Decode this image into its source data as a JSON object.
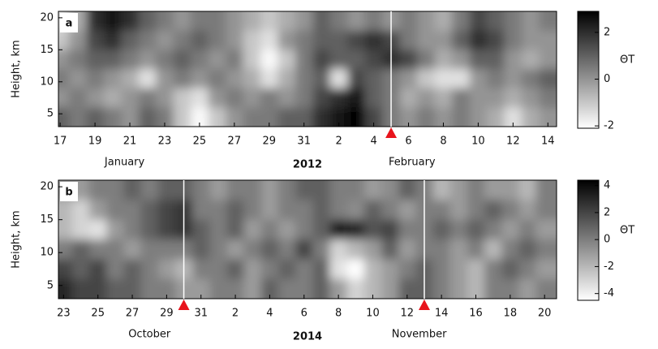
{
  "chart_data": [
    {
      "type": "heatmap",
      "panel_label": "a",
      "ylabel": "Height, km",
      "colorbar_label": "ΘT",
      "year": "2012",
      "colormap": [
        "#ffffff",
        "#000000"
      ],
      "x": [
        0,
        1,
        2,
        3,
        4,
        5,
        6,
        7,
        8,
        9,
        10,
        11,
        12,
        13,
        14,
        15,
        16,
        17,
        18,
        19,
        20,
        21,
        22,
        23,
        24,
        25,
        26,
        27,
        28
      ],
      "y": [
        19.5,
        16.5,
        13.5,
        10.5,
        7.5,
        4.5
      ],
      "z": [
        [
          -1.5,
          -0.5,
          2,
          2.5,
          2,
          1,
          0.5,
          0,
          0.5,
          0.5,
          0,
          -0.5,
          -1,
          -0.5,
          0,
          1,
          0.5,
          0,
          0.5,
          0,
          0.5,
          0,
          -0.5,
          0.5,
          1.5,
          1,
          0.5,
          0,
          0.5
        ],
        [
          -1,
          0,
          1.5,
          2,
          1,
          0.5,
          0,
          0.5,
          1,
          0.5,
          0,
          -1,
          -1.5,
          0,
          0.5,
          1,
          1,
          1.5,
          2,
          1.5,
          0.5,
          0,
          0,
          1,
          2,
          1.5,
          0.5,
          0,
          0
        ],
        [
          0,
          0.5,
          1,
          1,
          0.5,
          0,
          0.5,
          1,
          0.5,
          0,
          0.5,
          -1,
          -2,
          -1,
          0.5,
          1.5,
          1,
          1,
          1.5,
          2,
          1.5,
          0.5,
          -0.5,
          0,
          1,
          1,
          0,
          -0.5,
          0
        ],
        [
          0.5,
          0,
          0.5,
          0,
          -0.5,
          -1.5,
          0,
          0.5,
          0,
          0.5,
          0,
          -0.5,
          -1.5,
          -0.5,
          0.5,
          1,
          -1.5,
          1.5,
          1,
          0.5,
          0,
          -1,
          -1.5,
          -1.5,
          0,
          0.5,
          0,
          0.5,
          1
        ],
        [
          0,
          0.5,
          0,
          -0.5,
          0,
          0.5,
          0,
          -1,
          -1.5,
          0,
          0.5,
          0,
          0.5,
          0,
          0.5,
          1.5,
          2,
          2.5,
          1,
          0.5,
          -0.5,
          0,
          -0.5,
          0.5,
          0,
          0,
          -0.5,
          0,
          0.5
        ],
        [
          1,
          0.5,
          1,
          0.5,
          0,
          1,
          0.5,
          -1,
          -2,
          -1,
          0,
          0.5,
          0.5,
          1,
          1,
          2,
          2.5,
          2.9,
          1.5,
          0.5,
          0,
          0.5,
          0,
          0.5,
          0,
          -0.5,
          -1.5,
          -0.5,
          0
        ]
      ],
      "xlim": [
        -0.1,
        28.5
      ],
      "ylim": [
        3,
        21
      ],
      "yticks": [
        5,
        10,
        15,
        20
      ],
      "xticks": [
        {
          "value": 0,
          "label": "17"
        },
        {
          "value": 2,
          "label": "19"
        },
        {
          "value": 4,
          "label": "21"
        },
        {
          "value": 6,
          "label": "23"
        },
        {
          "value": 8,
          "label": "25"
        },
        {
          "value": 10,
          "label": "27"
        },
        {
          "value": 12,
          "label": "29"
        },
        {
          "value": 14,
          "label": "31"
        },
        {
          "value": 16,
          "label": "2"
        },
        {
          "value": 18,
          "label": "4"
        },
        {
          "value": 20,
          "label": "6"
        },
        {
          "value": 22,
          "label": "8"
        },
        {
          "value": 24,
          "label": "10"
        },
        {
          "value": 26,
          "label": "12"
        },
        {
          "value": 28,
          "label": "14"
        }
      ],
      "month_labels": [
        {
          "text": "January",
          "x": 3.7
        },
        {
          "text": "February",
          "x": 20.2
        }
      ],
      "events_x": [
        19
      ],
      "clim": [
        -2.1,
        2.9
      ],
      "cticks": [
        -2,
        0,
        2
      ]
    },
    {
      "type": "heatmap",
      "panel_label": "b",
      "ylabel": "Height, km",
      "colorbar_label": "ΘT",
      "year": "2014",
      "colormap": [
        "#ffffff",
        "#000000"
      ],
      "x": [
        0,
        1,
        2,
        3,
        4,
        5,
        6,
        7,
        8,
        9,
        10,
        11,
        12,
        13,
        14,
        15,
        16,
        17,
        18,
        19,
        20,
        21,
        22,
        23,
        24,
        25,
        26,
        27,
        28
      ],
      "y": [
        19.5,
        16.5,
        13.5,
        10.5,
        7.5,
        4.5
      ],
      "z": [
        [
          -1,
          -1,
          0,
          0,
          1,
          0,
          1,
          1,
          0,
          -1,
          0,
          0,
          -1,
          0,
          1,
          1,
          0,
          0,
          -1,
          -0.5,
          1,
          0,
          -2,
          -1,
          0,
          -1,
          -1,
          -2,
          0
        ],
        [
          -2,
          -3,
          -1,
          0,
          0,
          1,
          2,
          2.5,
          0,
          0,
          1,
          0,
          -1,
          0,
          0,
          1,
          0,
          -0.5,
          1,
          0,
          -1,
          0,
          0,
          -1,
          0,
          1,
          0,
          -1,
          0
        ],
        [
          -2,
          -3,
          -3.5,
          -1,
          0,
          1,
          2,
          2.5,
          1,
          0,
          1,
          -1,
          0,
          -1,
          0,
          1,
          3.5,
          3,
          1.5,
          2,
          0,
          0,
          1,
          0,
          1,
          0,
          -1,
          0,
          -1
        ],
        [
          0,
          1,
          0,
          0,
          -1,
          0,
          0,
          0,
          1,
          0,
          -1,
          0,
          1,
          0,
          2,
          0,
          -3,
          -2,
          -1,
          1,
          -1,
          0,
          0,
          -1,
          0,
          -2,
          0,
          1,
          0
        ],
        [
          2,
          1,
          2,
          0,
          1,
          0,
          -1,
          -2,
          0,
          0,
          1,
          -1,
          0,
          1,
          0,
          1,
          -3.5,
          -4.5,
          -2,
          -1,
          0,
          1,
          0,
          -1,
          -2,
          0,
          1,
          0,
          -1
        ],
        [
          3,
          2,
          2,
          1,
          1,
          0,
          0,
          -1,
          -1,
          0,
          0,
          -1,
          1,
          0,
          0,
          1,
          -1,
          -3,
          -2,
          -1,
          1,
          1,
          0,
          -1,
          -2,
          0,
          0,
          -1,
          0
        ]
      ],
      "xlim": [
        -0.3,
        28.7
      ],
      "ylim": [
        3,
        21
      ],
      "yticks": [
        5,
        10,
        15,
        20
      ],
      "xticks": [
        {
          "value": 0,
          "label": "23"
        },
        {
          "value": 2,
          "label": "25"
        },
        {
          "value": 4,
          "label": "27"
        },
        {
          "value": 6,
          "label": "29"
        },
        {
          "value": 8,
          "label": "31"
        },
        {
          "value": 10,
          "label": "2"
        },
        {
          "value": 12,
          "label": "4"
        },
        {
          "value": 14,
          "label": "6"
        },
        {
          "value": 16,
          "label": "8"
        },
        {
          "value": 18,
          "label": "10"
        },
        {
          "value": 20,
          "label": "12"
        },
        {
          "value": 22,
          "label": "14"
        },
        {
          "value": 24,
          "label": "16"
        },
        {
          "value": 26,
          "label": "18"
        },
        {
          "value": 28,
          "label": "20"
        }
      ],
      "month_labels": [
        {
          "text": "October",
          "x": 5
        },
        {
          "text": "November",
          "x": 20.7
        }
      ],
      "events_x": [
        7,
        21
      ],
      "clim": [
        -4.5,
        4.4
      ],
      "cticks": [
        -4,
        -2,
        0,
        2,
        4
      ]
    }
  ]
}
